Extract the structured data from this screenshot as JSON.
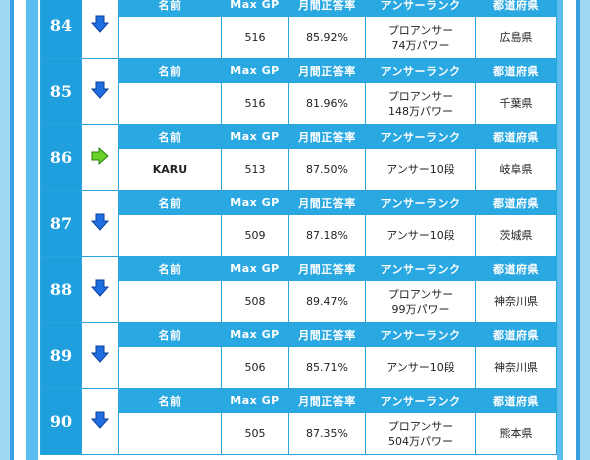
{
  "columns": {
    "name": "名前",
    "maxgp": "Max GP",
    "rate": "月間正答率",
    "rank": "アンサーランク",
    "pref": "都道府県"
  },
  "colors": {
    "rank_bg": "#1f9fde",
    "header_bg": "#2aa8e2",
    "down": "#1f6fe0",
    "same": "#66d22a"
  },
  "rows": [
    {
      "rank": "84",
      "trend": "down-arrow-icon",
      "name": "",
      "maxgp": "516",
      "rate": "85.92%",
      "answer_rank": [
        "プロアンサー",
        "74万パワー"
      ],
      "pref": "広島県"
    },
    {
      "rank": "85",
      "trend": "down-arrow-icon",
      "name": "",
      "maxgp": "516",
      "rate": "81.96%",
      "answer_rank": [
        "プロアンサー",
        "148万パワー"
      ],
      "pref": "千葉県"
    },
    {
      "rank": "86",
      "trend": "right-arrow-icon",
      "name": "KARU",
      "maxgp": "513",
      "rate": "87.50%",
      "answer_rank": [
        "アンサー10段"
      ],
      "pref": "岐阜県"
    },
    {
      "rank": "87",
      "trend": "down-arrow-icon",
      "name": "",
      "maxgp": "509",
      "rate": "87.18%",
      "answer_rank": [
        "アンサー10段"
      ],
      "pref": "茨城県"
    },
    {
      "rank": "88",
      "trend": "down-arrow-icon",
      "name": "",
      "maxgp": "508",
      "rate": "89.47%",
      "answer_rank": [
        "プロアンサー",
        "99万パワー"
      ],
      "pref": "神奈川県"
    },
    {
      "rank": "89",
      "trend": "down-arrow-icon",
      "name": "",
      "maxgp": "506",
      "rate": "85.71%",
      "answer_rank": [
        "アンサー10段"
      ],
      "pref": "神奈川県"
    },
    {
      "rank": "90",
      "trend": "down-arrow-icon",
      "name": "",
      "maxgp": "505",
      "rate": "87.35%",
      "answer_rank": [
        "プロアンサー",
        "504万パワー"
      ],
      "pref": "熊本県"
    }
  ]
}
